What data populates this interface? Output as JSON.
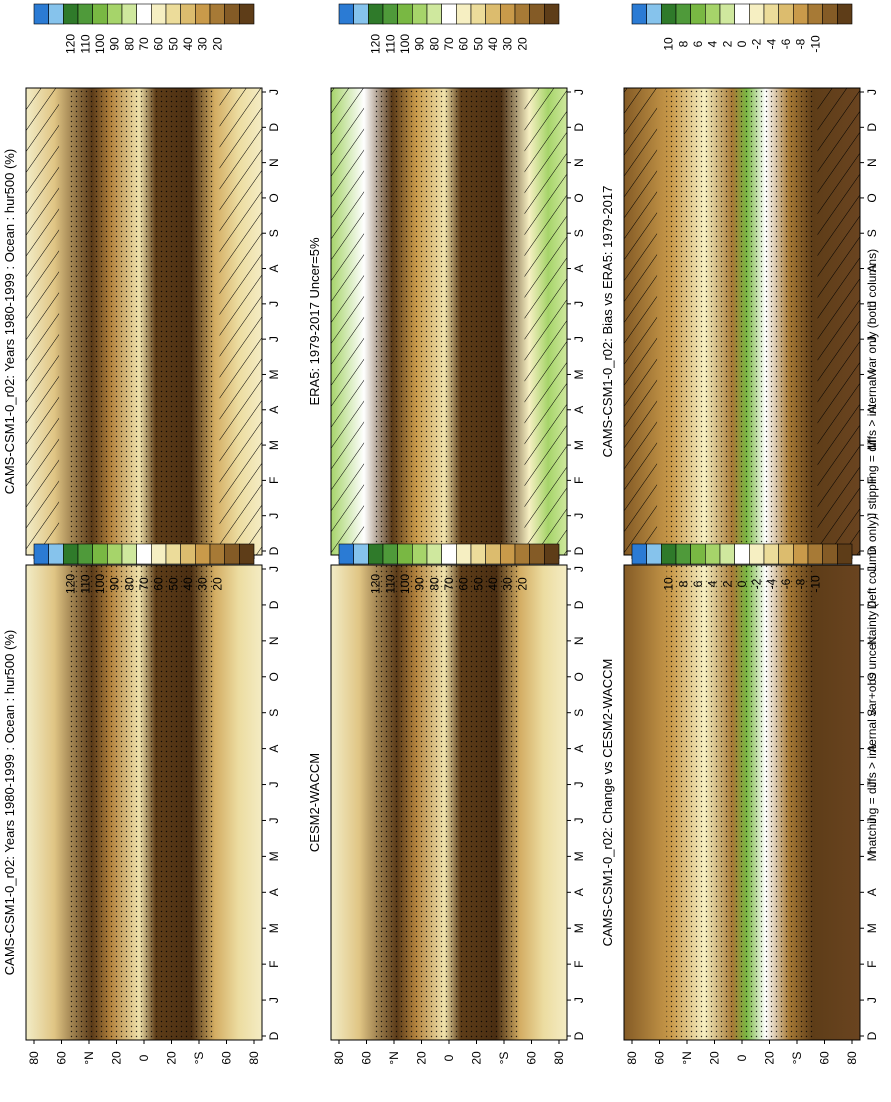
{
  "footnote": "hatching = diffs > internal var+obs uncertainty (left column only); stippling = diffs > internal var only (both columns)",
  "chart_data": [
    {
      "type": "heatmap",
      "title": "CAMS-CSM1-0_r02: Years 1980-1999 : Ocean : hur500 (%)",
      "x_labels": [
        "D",
        "J",
        "F",
        "M",
        "A",
        "M",
        "J",
        "J",
        "A",
        "S",
        "O",
        "N",
        "D",
        "J"
      ],
      "y_labels": [
        "80",
        "60",
        "°N",
        "20",
        "0",
        "20",
        "°S",
        "60",
        "80"
      ],
      "colorbar_labels": [
        "120",
        "110",
        "100",
        "90",
        "80",
        "70",
        "60",
        "50",
        "40",
        "30",
        "20"
      ],
      "hatching": true,
      "stippling": true
    },
    {
      "type": "heatmap",
      "title": "CAMS-CSM1-0_r02: Years 1980-1999 : Ocean : hur500 (%)",
      "x_labels": [
        "D",
        "J",
        "F",
        "M",
        "A",
        "M",
        "J",
        "J",
        "A",
        "S",
        "O",
        "N",
        "D",
        "J"
      ],
      "y_labels": [
        "80",
        "60",
        "°N",
        "20",
        "0",
        "20",
        "°S",
        "60",
        "80"
      ],
      "colorbar_labels": [
        "120",
        "110",
        "100",
        "90",
        "80",
        "70",
        "60",
        "50",
        "40",
        "30",
        "20"
      ],
      "hatching": false,
      "stippling": true
    },
    {
      "type": "heatmap",
      "title": "ERA5: 1979-2017 Uncer=5%",
      "x_labels": [
        "D",
        "J",
        "F",
        "M",
        "A",
        "M",
        "J",
        "J",
        "A",
        "S",
        "O",
        "N",
        "D",
        "J"
      ],
      "y_labels": [
        "80",
        "60",
        "°N",
        "20",
        "0",
        "20",
        "°S",
        "60",
        "80"
      ],
      "colorbar_labels": [
        "120",
        "110",
        "100",
        "90",
        "80",
        "70",
        "60",
        "50",
        "40",
        "30",
        "20"
      ],
      "hatching": true,
      "stippling": true
    },
    {
      "type": "heatmap",
      "title": "CESM2-WACCM",
      "x_labels": [
        "D",
        "J",
        "F",
        "M",
        "A",
        "M",
        "J",
        "J",
        "A",
        "S",
        "O",
        "N",
        "D",
        "J"
      ],
      "y_labels": [
        "80",
        "60",
        "°N",
        "20",
        "0",
        "20",
        "°S",
        "60",
        "80"
      ],
      "colorbar_labels": [
        "120",
        "110",
        "100",
        "90",
        "80",
        "70",
        "60",
        "50",
        "40",
        "30",
        "20"
      ],
      "hatching": false,
      "stippling": true
    },
    {
      "type": "heatmap",
      "title": "CAMS-CSM1-0_r02: Bias vs ERA5: 1979-2017",
      "x_labels": [
        "D",
        "J",
        "F",
        "M",
        "A",
        "M",
        "J",
        "J",
        "A",
        "S",
        "O",
        "N",
        "D",
        "J"
      ],
      "y_labels": [
        "80",
        "60",
        "°N",
        "20",
        "0",
        "20",
        "°S",
        "60",
        "80"
      ],
      "colorbar_labels": [
        "10",
        "8",
        "6",
        "4",
        "2",
        "0",
        "-2",
        "-4",
        "-6",
        "-8",
        "-10"
      ],
      "hatching": true,
      "stippling": true
    },
    {
      "type": "heatmap",
      "title": "CAMS-CSM1-0_r02: Change vs CESM2-WACCM",
      "x_labels": [
        "D",
        "J",
        "F",
        "M",
        "A",
        "M",
        "J",
        "J",
        "A",
        "S",
        "O",
        "N",
        "D",
        "J"
      ],
      "y_labels": [
        "80",
        "60",
        "°N",
        "20",
        "0",
        "20",
        "°S",
        "60",
        "80"
      ],
      "colorbar_labels": [
        "10",
        "8",
        "6",
        "4",
        "2",
        "0",
        "-2",
        "-4",
        "-6",
        "-8",
        "-10"
      ],
      "hatching": false,
      "stippling": true
    }
  ],
  "colors": {
    "colorbar_boxes": [
      "#2b7bd4",
      "#86c3ec",
      "#2f7a2a",
      "#4f9a3a",
      "#79b843",
      "#a6d46a",
      "#cfe89e",
      "#ffffff",
      "#f6efc2",
      "#ecdc9a",
      "#dcbc6e",
      "#c99a4a",
      "#a77a36",
      "#845b26",
      "#5e3d18"
    ],
    "field_dry": "#6a4420",
    "field_mid": "#c89a52",
    "field_light": "#f2e6b6",
    "field_moist": "#c4e48a"
  }
}
